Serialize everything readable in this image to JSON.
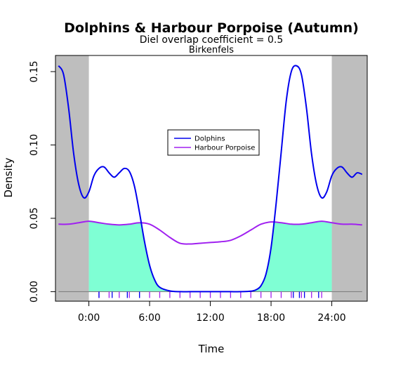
{
  "chart_data": {
    "type": "line",
    "title": "Dolphins & Harbour Porpoise (Autumn)",
    "subtitle": "Diel overlap coefficient =  0.5",
    "subtitle2": "Birkenfels",
    "xlabel": "Time",
    "ylabel": "Density",
    "xlim": [
      -3.3,
      27.5
    ],
    "ylim": [
      -0.0065,
      0.161
    ],
    "x_ticks": [
      0,
      6,
      12,
      18,
      24
    ],
    "x_tick_labels": [
      "0:00",
      "6:00",
      "12:00",
      "18:00",
      "24:00"
    ],
    "y_ticks": [
      0,
      0.05,
      0.1,
      0.15
    ],
    "y_tick_labels": [
      "0.00",
      "0.05",
      "0.10",
      "0.15"
    ],
    "night_shading": [
      [
        -3.3,
        0
      ],
      [
        24,
        27.5
      ]
    ],
    "legend_position": "center",
    "colors": {
      "dolphins": "#0000ee",
      "porpoise": "#a020f0",
      "overlap_fill": "#7fffd4",
      "night_shade": "#bebebe",
      "baseline": "#808080"
    },
    "series": [
      {
        "name": "Dolphins",
        "x": [
          -3,
          -2.5,
          -2,
          -1.5,
          -1,
          -0.5,
          0,
          0.5,
          1,
          1.5,
          2,
          2.5,
          3,
          3.5,
          4,
          4.5,
          5,
          5.5,
          6,
          6.5,
          7,
          8,
          9,
          10,
          11,
          12,
          13,
          14,
          15,
          16,
          16.5,
          17,
          17.5,
          18,
          18.5,
          19,
          19.5,
          20,
          20.5,
          21,
          21.5,
          22,
          22.5,
          23,
          23.5,
          24,
          24.5,
          25,
          25.5,
          26,
          26.5,
          27
        ],
        "values": [
          0.154,
          0.148,
          0.125,
          0.094,
          0.073,
          0.064,
          0.068,
          0.079,
          0.084,
          0.085,
          0.081,
          0.078,
          0.081,
          0.084,
          0.082,
          0.072,
          0.054,
          0.034,
          0.018,
          0.008,
          0.003,
          0.0005,
          0,
          0,
          0,
          0,
          0,
          0,
          0,
          0.0003,
          0.0012,
          0.004,
          0.012,
          0.03,
          0.06,
          0.095,
          0.13,
          0.15,
          0.154,
          0.148,
          0.125,
          0.094,
          0.073,
          0.064,
          0.068,
          0.079,
          0.084,
          0.085,
          0.081,
          0.078,
          0.081,
          0.08
        ]
      },
      {
        "name": "Harbour Porpoise",
        "x": [
          -3,
          -2,
          -1,
          0,
          1,
          2,
          3,
          4,
          5,
          6,
          7,
          8,
          9,
          10,
          11,
          12,
          13,
          14,
          15,
          16,
          17,
          18,
          19,
          20,
          21,
          22,
          23,
          24,
          25,
          26,
          27
        ],
        "values": [
          0.046,
          0.046,
          0.047,
          0.048,
          0.047,
          0.046,
          0.0455,
          0.046,
          0.047,
          0.046,
          0.042,
          0.037,
          0.033,
          0.0325,
          0.033,
          0.0335,
          0.034,
          0.035,
          0.038,
          0.042,
          0.046,
          0.0475,
          0.047,
          0.046,
          0.046,
          0.047,
          0.048,
          0.047,
          0.046,
          0.046,
          0.0455
        ]
      }
    ],
    "observations": {
      "Dolphins": [
        1.0,
        2.3,
        3.8,
        5.0,
        20.2,
        20.8,
        21.3,
        22.7
      ],
      "Harbour Porpoise": [
        1.0,
        2.0,
        3.0,
        4.0,
        5.0,
        6.0,
        7.0,
        8.0,
        9.0,
        10.0,
        11.0,
        12.0,
        13.0,
        14.0,
        15.0,
        16.0,
        17.0,
        18.0,
        19.0,
        20.0,
        21.0,
        22.0,
        23.0
      ]
    }
  }
}
